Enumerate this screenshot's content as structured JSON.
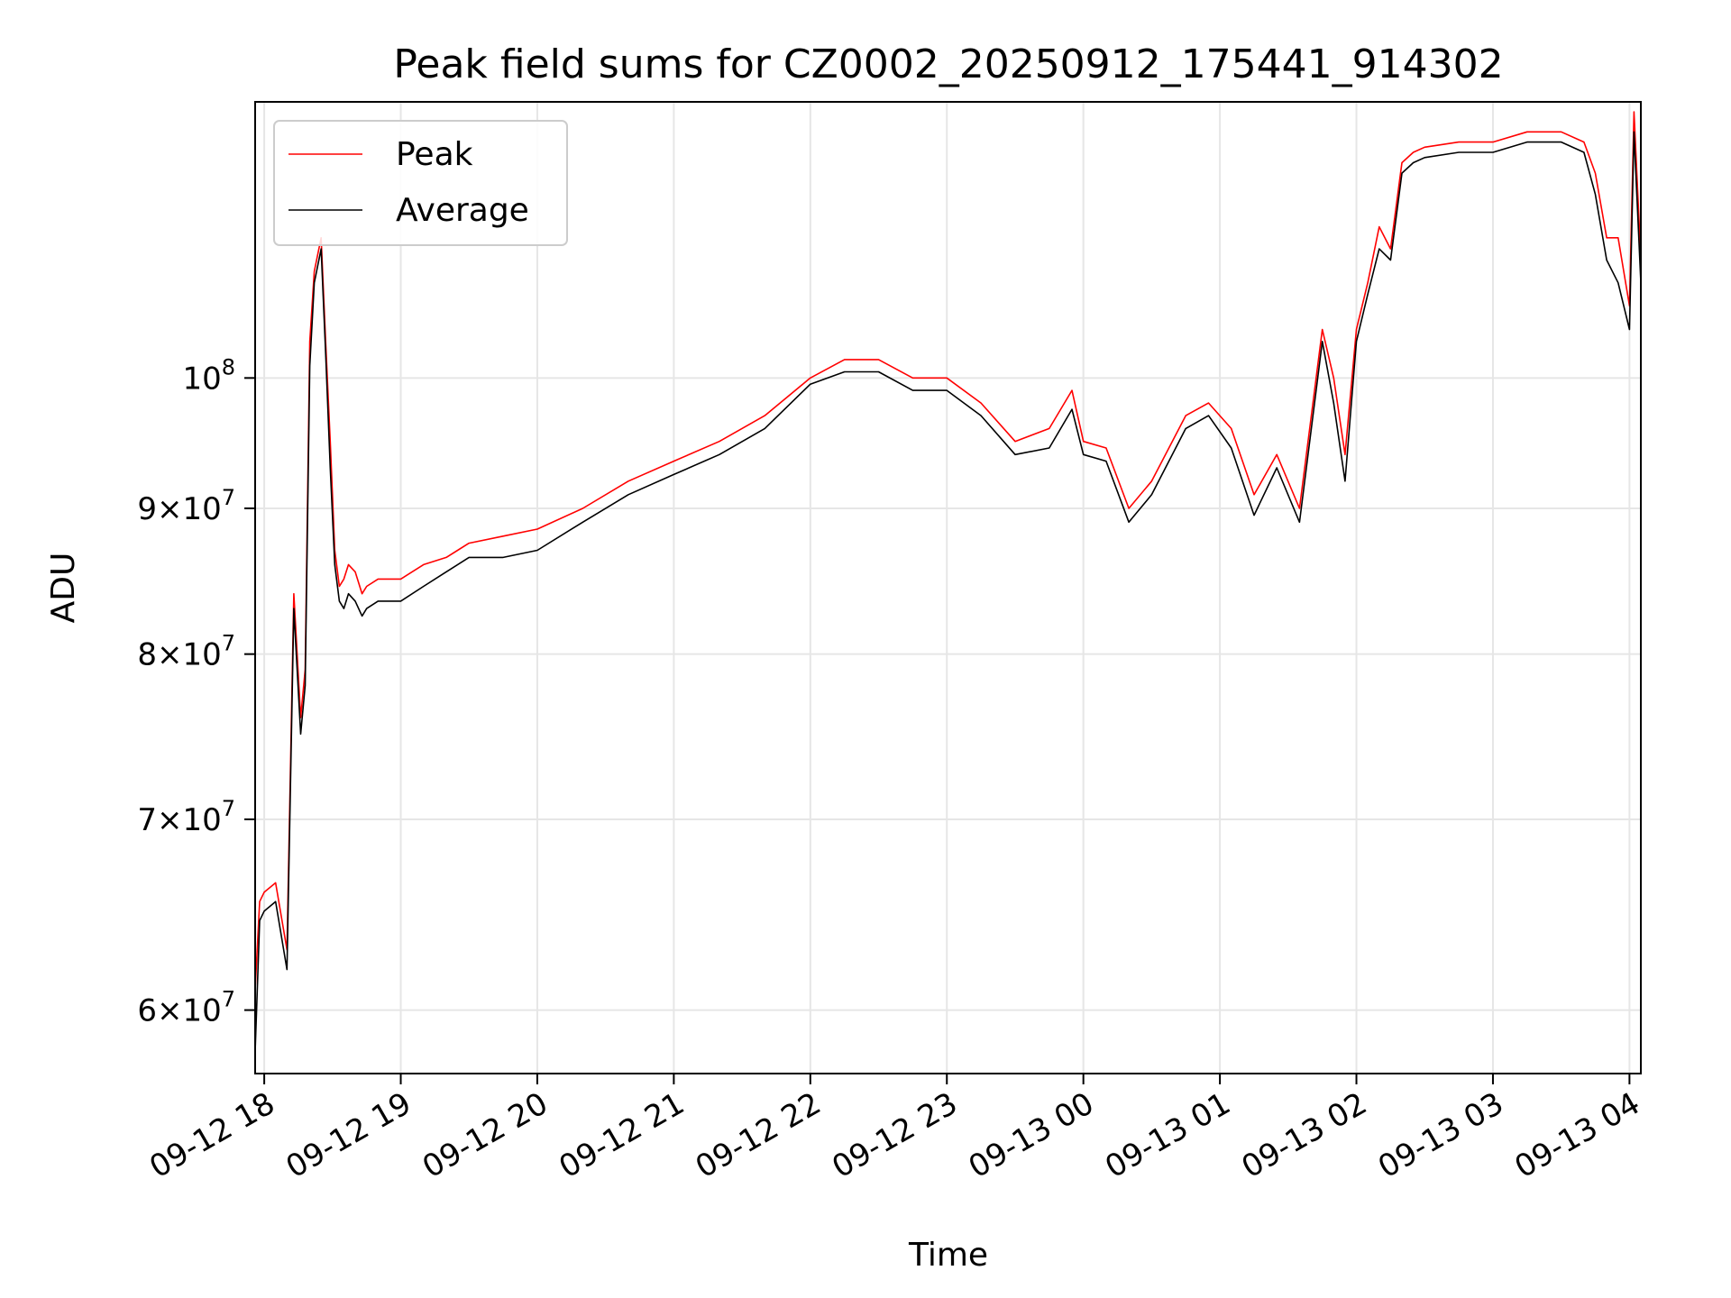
{
  "chart_data": {
    "type": "line",
    "title": "Peak field sums for CZ0002_20250912_175441_914302",
    "xlabel": "Time",
    "ylabel": "ADU",
    "xlim": [
      "2025-09-12T17:56",
      "2025-09-13T04:05"
    ],
    "ylim": [
      57000000,
      125000000
    ],
    "yscale": "log",
    "grid": true,
    "legend": "top-left",
    "x_ticks": [
      "09-12 18",
      "09-12 19",
      "09-12 20",
      "09-12 21",
      "09-12 22",
      "09-12 23",
      "09-13 00",
      "09-13 01",
      "09-13 02",
      "09-13 03",
      "09-13 04"
    ],
    "x_tick_times": [
      "2025-09-12T18:00",
      "2025-09-12T19:00",
      "2025-09-12T20:00",
      "2025-09-12T21:00",
      "2025-09-12T22:00",
      "2025-09-12T23:00",
      "2025-09-13T00:00",
      "2025-09-13T01:00",
      "2025-09-13T02:00",
      "2025-09-13T03:00",
      "2025-09-13T04:00"
    ],
    "y_ticks": [
      {
        "value": 60000000,
        "mant": "6",
        "exp": "7"
      },
      {
        "value": 70000000,
        "mant": "7",
        "exp": "7"
      },
      {
        "value": 80000000,
        "mant": "8",
        "exp": "7"
      },
      {
        "value": 90000000,
        "mant": "9",
        "exp": "7"
      },
      {
        "value": 100000000,
        "mant": "",
        "exp": "8"
      }
    ],
    "series": [
      {
        "name": "Peak",
        "color": "#ff0000",
        "x": [
          "2025-09-12T17:56",
          "2025-09-12T17:58",
          "2025-09-12T18:00",
          "2025-09-12T18:05",
          "2025-09-12T18:10",
          "2025-09-12T18:13",
          "2025-09-12T18:16",
          "2025-09-12T18:18",
          "2025-09-12T18:20",
          "2025-09-12T18:22",
          "2025-09-12T18:25",
          "2025-09-12T18:27",
          "2025-09-12T18:29",
          "2025-09-12T18:31",
          "2025-09-12T18:33",
          "2025-09-12T18:35",
          "2025-09-12T18:37",
          "2025-09-12T18:40",
          "2025-09-12T18:43",
          "2025-09-12T18:45",
          "2025-09-12T18:50",
          "2025-09-12T19:00",
          "2025-09-12T19:10",
          "2025-09-12T19:20",
          "2025-09-12T19:30",
          "2025-09-12T19:45",
          "2025-09-12T20:00",
          "2025-09-12T20:20",
          "2025-09-12T20:40",
          "2025-09-12T21:00",
          "2025-09-12T21:20",
          "2025-09-12T21:40",
          "2025-09-12T22:00",
          "2025-09-12T22:15",
          "2025-09-12T22:30",
          "2025-09-12T22:45",
          "2025-09-12T23:00",
          "2025-09-12T23:15",
          "2025-09-12T23:30",
          "2025-09-12T23:45",
          "2025-09-12T23:55",
          "2025-09-13T00:00",
          "2025-09-13T00:10",
          "2025-09-13T00:20",
          "2025-09-13T00:30",
          "2025-09-13T00:45",
          "2025-09-13T00:55",
          "2025-09-13T01:05",
          "2025-09-13T01:15",
          "2025-09-13T01:25",
          "2025-09-13T01:35",
          "2025-09-13T01:45",
          "2025-09-13T01:50",
          "2025-09-13T01:55",
          "2025-09-13T02:00",
          "2025-09-13T02:05",
          "2025-09-13T02:10",
          "2025-09-13T02:15",
          "2025-09-13T02:20",
          "2025-09-13T02:25",
          "2025-09-13T02:30",
          "2025-09-13T02:45",
          "2025-09-13T03:00",
          "2025-09-13T03:15",
          "2025-09-13T03:30",
          "2025-09-13T03:40",
          "2025-09-13T03:45",
          "2025-09-13T03:50",
          "2025-09-13T03:55",
          "2025-09-13T04:00",
          "2025-09-13T04:02",
          "2025-09-13T04:05"
        ],
        "values": [
          61000000,
          65500000,
          66000000,
          66500000,
          63000000,
          84000000,
          76000000,
          79000000,
          103000000,
          109000000,
          112000000,
          103000000,
          95000000,
          87000000,
          84500000,
          85000000,
          86000000,
          85500000,
          84000000,
          84500000,
          85000000,
          85000000,
          86000000,
          86500000,
          87500000,
          88000000,
          88500000,
          90000000,
          92000000,
          93500000,
          95000000,
          97000000,
          100000000,
          101500000,
          101500000,
          100000000,
          100000000,
          98000000,
          95000000,
          96000000,
          99000000,
          95000000,
          94500000,
          90000000,
          92000000,
          97000000,
          98000000,
          96000000,
          91000000,
          94000000,
          90000000,
          104000000,
          100000000,
          94000000,
          104000000,
          108000000,
          113000000,
          111000000,
          119000000,
          120000000,
          120500000,
          121000000,
          121000000,
          122000000,
          122000000,
          121000000,
          118000000,
          112000000,
          112000000,
          106000000,
          124000000,
          110000000
        ]
      },
      {
        "name": "Average",
        "color": "#000000",
        "x": [
          "2025-09-12T17:56",
          "2025-09-12T17:58",
          "2025-09-12T18:00",
          "2025-09-12T18:05",
          "2025-09-12T18:10",
          "2025-09-12T18:13",
          "2025-09-12T18:16",
          "2025-09-12T18:18",
          "2025-09-12T18:20",
          "2025-09-12T18:22",
          "2025-09-12T18:25",
          "2025-09-12T18:27",
          "2025-09-12T18:29",
          "2025-09-12T18:31",
          "2025-09-12T18:33",
          "2025-09-12T18:35",
          "2025-09-12T18:37",
          "2025-09-12T18:40",
          "2025-09-12T18:43",
          "2025-09-12T18:45",
          "2025-09-12T18:50",
          "2025-09-12T19:00",
          "2025-09-12T19:10",
          "2025-09-12T19:20",
          "2025-09-12T19:30",
          "2025-09-12T19:45",
          "2025-09-12T20:00",
          "2025-09-12T20:20",
          "2025-09-12T20:40",
          "2025-09-12T21:00",
          "2025-09-12T21:20",
          "2025-09-12T21:40",
          "2025-09-12T22:00",
          "2025-09-12T22:15",
          "2025-09-12T22:30",
          "2025-09-12T22:45",
          "2025-09-12T23:00",
          "2025-09-12T23:15",
          "2025-09-12T23:30",
          "2025-09-12T23:45",
          "2025-09-12T23:55",
          "2025-09-13T00:00",
          "2025-09-13T00:10",
          "2025-09-13T00:20",
          "2025-09-13T00:30",
          "2025-09-13T00:45",
          "2025-09-13T00:55",
          "2025-09-13T01:05",
          "2025-09-13T01:15",
          "2025-09-13T01:25",
          "2025-09-13T01:35",
          "2025-09-13T01:45",
          "2025-09-13T01:50",
          "2025-09-13T01:55",
          "2025-09-13T02:00",
          "2025-09-13T02:05",
          "2025-09-13T02:10",
          "2025-09-13T02:15",
          "2025-09-13T02:20",
          "2025-09-13T02:25",
          "2025-09-13T02:30",
          "2025-09-13T02:45",
          "2025-09-13T03:00",
          "2025-09-13T03:15",
          "2025-09-13T03:30",
          "2025-09-13T03:40",
          "2025-09-13T03:45",
          "2025-09-13T03:50",
          "2025-09-13T03:55",
          "2025-09-13T04:00",
          "2025-09-13T04:02",
          "2025-09-13T04:05"
        ],
        "values": [
          58000000,
          64500000,
          65000000,
          65500000,
          62000000,
          83000000,
          75000000,
          78000000,
          101000000,
          108000000,
          111000000,
          102000000,
          93000000,
          86000000,
          83500000,
          83000000,
          84000000,
          83500000,
          82500000,
          83000000,
          83500000,
          83500000,
          84500000,
          85500000,
          86500000,
          86500000,
          87000000,
          89000000,
          91000000,
          92500000,
          94000000,
          96000000,
          99500000,
          100500000,
          100500000,
          99000000,
          99000000,
          97000000,
          94000000,
          94500000,
          97500000,
          94000000,
          93500000,
          89000000,
          91000000,
          96000000,
          97000000,
          94500000,
          89500000,
          93000000,
          89000000,
          103000000,
          98000000,
          92000000,
          103000000,
          107000000,
          111000000,
          110000000,
          118000000,
          119000000,
          119500000,
          120000000,
          120000000,
          121000000,
          121000000,
          120000000,
          116000000,
          110000000,
          108000000,
          104000000,
          122000000,
          108000000
        ]
      }
    ]
  }
}
